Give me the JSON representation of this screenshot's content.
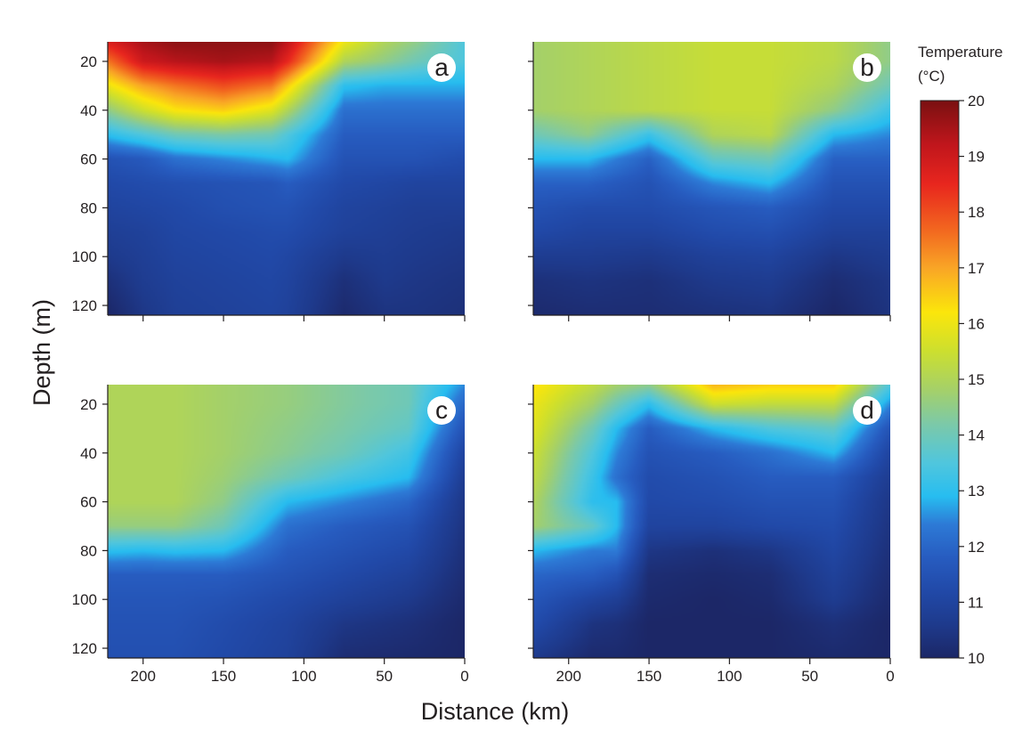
{
  "chart_data": {
    "type": "heatmap",
    "xlabel": "Distance (km)",
    "ylabel": "Depth (m)",
    "x_ticks": [
      200,
      150,
      100,
      50,
      0
    ],
    "y_ticks": [
      20,
      40,
      60,
      80,
      100,
      120
    ],
    "xlim": [
      222,
      0
    ],
    "ylim": [
      12,
      124
    ],
    "colorbar": {
      "title": "Temperature (°C)",
      "title_lines": [
        "Temperature",
        "(°C)"
      ],
      "range": [
        10,
        20
      ],
      "ticks": [
        10,
        11,
        12,
        13,
        14,
        15,
        16,
        17,
        18,
        19,
        20
      ],
      "colors": [
        {
          "t": 10,
          "color": "#1c2767"
        },
        {
          "t": 10.6,
          "color": "#1e3a8c"
        },
        {
          "t": 11.2,
          "color": "#2149a8"
        },
        {
          "t": 11.8,
          "color": "#275cc0"
        },
        {
          "t": 12.4,
          "color": "#2d7ad6"
        },
        {
          "t": 12.9,
          "color": "#27bdf0"
        },
        {
          "t": 13.5,
          "color": "#50c6dd"
        },
        {
          "t": 14.2,
          "color": "#7cc9a8"
        },
        {
          "t": 14.8,
          "color": "#a4d06a"
        },
        {
          "t": 15.5,
          "color": "#ccdf2f"
        },
        {
          "t": 16.2,
          "color": "#fbe60b"
        },
        {
          "t": 17,
          "color": "#f9a526"
        },
        {
          "t": 17.7,
          "color": "#f2651f"
        },
        {
          "t": 18.5,
          "color": "#e8261e"
        },
        {
          "t": 19.2,
          "color": "#c1161c"
        },
        {
          "t": 20,
          "color": "#7a1011"
        }
      ]
    },
    "panels": [
      {
        "label": "a",
        "stations_km": [
          222,
          200,
          180,
          150,
          120,
          110,
          75,
          50,
          30,
          0
        ],
        "depths_m": [
          12,
          20,
          30,
          40,
          50,
          60,
          70,
          80,
          90,
          100,
          110,
          124
        ],
        "temperature": [
          [
            18.8,
            19.5,
            19.8,
            19.8,
            19.8,
            19.2,
            16.0,
            15.0,
            14.5,
            13.5
          ],
          [
            17.5,
            19.0,
            19.3,
            19.5,
            19.3,
            18.5,
            15.0,
            14.5,
            14.0,
            13.5
          ],
          [
            16.0,
            17.0,
            17.5,
            18.0,
            17.5,
            16.5,
            13.0,
            12.8,
            12.8,
            12.8
          ],
          [
            14.5,
            15.5,
            16.2,
            16.5,
            15.8,
            15.0,
            12.2,
            12.2,
            12.2,
            12.2
          ],
          [
            13.0,
            13.5,
            14.0,
            14.2,
            14.0,
            13.5,
            11.8,
            11.8,
            11.8,
            11.8
          ],
          [
            11.5,
            11.7,
            12.2,
            12.5,
            12.8,
            12.9,
            11.5,
            11.5,
            11.5,
            11.3
          ],
          [
            11.2,
            11.3,
            11.4,
            11.5,
            11.6,
            11.8,
            11.2,
            11.1,
            11.0,
            11.0
          ],
          [
            11.0,
            11.1,
            11.2,
            11.4,
            11.5,
            11.5,
            11.0,
            10.9,
            10.8,
            10.8
          ],
          [
            10.8,
            10.9,
            11.1,
            11.2,
            11.3,
            11.3,
            10.9,
            10.8,
            10.7,
            10.6
          ],
          [
            10.6,
            10.8,
            11.0,
            11.1,
            11.2,
            11.1,
            10.6,
            10.7,
            10.6,
            10.5
          ],
          [
            10.3,
            10.7,
            10.9,
            11.0,
            11.1,
            11.0,
            10.3,
            10.6,
            10.5,
            10.4
          ],
          [
            10.0,
            10.5,
            10.8,
            10.9,
            11.0,
            10.9,
            10.1,
            10.4,
            10.4,
            10.3
          ]
        ]
      },
      {
        "label": "b",
        "stations_km": [
          222,
          188,
          150,
          110,
          75,
          35,
          0
        ],
        "depths_m": [
          12,
          20,
          30,
          40,
          50,
          60,
          70,
          80,
          90,
          100,
          110,
          124
        ],
        "temperature": [
          [
            14.8,
            15.0,
            15.2,
            15.4,
            15.4,
            15.2,
            14.5
          ],
          [
            14.8,
            15.0,
            15.2,
            15.4,
            15.4,
            15.2,
            14.5
          ],
          [
            14.8,
            15.0,
            15.2,
            15.4,
            15.4,
            15.0,
            14.0
          ],
          [
            14.8,
            15.0,
            15.2,
            15.4,
            15.4,
            14.5,
            13.2
          ],
          [
            14.0,
            14.5,
            13.2,
            15.0,
            15.2,
            12.9,
            12.5
          ],
          [
            12.9,
            12.9,
            11.9,
            13.8,
            14.0,
            11.9,
            11.9
          ],
          [
            11.9,
            11.9,
            11.5,
            12.5,
            12.9,
            11.5,
            11.5
          ],
          [
            11.5,
            11.3,
            11.3,
            11.6,
            11.8,
            11.2,
            11.2
          ],
          [
            11.2,
            11.0,
            11.0,
            11.3,
            11.4,
            10.9,
            10.9
          ],
          [
            10.7,
            10.7,
            10.6,
            10.9,
            11.0,
            10.5,
            10.7
          ],
          [
            10.3,
            10.4,
            10.3,
            10.6,
            10.7,
            10.2,
            10.5
          ],
          [
            10.1,
            10.2,
            10.2,
            10.3,
            10.4,
            10.0,
            10.4
          ]
        ]
      },
      {
        "label": "c",
        "stations_km": [
          222,
          200,
          180,
          150,
          110,
          75,
          35,
          0
        ],
        "depths_m": [
          12,
          20,
          30,
          40,
          50,
          60,
          70,
          80,
          90,
          100,
          110,
          124
        ],
        "temperature": [
          [
            15.0,
            15.0,
            15.0,
            14.8,
            14.6,
            14.3,
            14.0,
            12.5
          ],
          [
            15.0,
            15.0,
            15.0,
            14.8,
            14.6,
            14.3,
            14.0,
            12.0
          ],
          [
            15.0,
            15.0,
            15.0,
            14.8,
            14.5,
            14.2,
            13.8,
            11.5
          ],
          [
            15.0,
            15.0,
            15.0,
            14.8,
            14.4,
            14.0,
            13.3,
            11.0
          ],
          [
            15.0,
            15.0,
            15.0,
            14.7,
            14.0,
            13.4,
            12.9,
            10.7
          ],
          [
            15.0,
            15.0,
            15.0,
            14.5,
            12.9,
            12.5,
            12.0,
            10.5
          ],
          [
            14.6,
            14.6,
            14.6,
            14.0,
            12.2,
            11.8,
            11.5,
            10.4
          ],
          [
            13.0,
            12.9,
            13.0,
            12.9,
            11.8,
            11.5,
            11.2,
            10.3
          ],
          [
            11.8,
            11.8,
            11.8,
            11.8,
            11.5,
            11.2,
            10.9,
            10.2
          ],
          [
            11.6,
            11.6,
            11.6,
            11.5,
            11.2,
            10.9,
            10.6,
            10.1
          ],
          [
            11.5,
            11.5,
            11.5,
            11.3,
            11.0,
            10.5,
            10.3,
            10.0
          ],
          [
            11.4,
            11.4,
            11.4,
            11.2,
            10.9,
            10.2,
            10.1,
            10.0
          ]
        ]
      },
      {
        "label": "d",
        "stations_km": [
          222,
          185,
          170,
          150,
          110,
          75,
          35,
          0
        ],
        "depths_m": [
          12,
          20,
          30,
          40,
          50,
          60,
          70,
          80,
          90,
          100,
          110,
          124
        ],
        "temperature": [
          [
            16.3,
            15.3,
            14.8,
            14.5,
            16.8,
            16.5,
            16.5,
            13.5
          ],
          [
            16.0,
            14.8,
            14.0,
            13.0,
            15.5,
            15.3,
            15.3,
            12.5
          ],
          [
            15.8,
            14.0,
            12.9,
            11.8,
            12.9,
            13.5,
            13.8,
            11.5
          ],
          [
            15.5,
            13.5,
            12.5,
            11.5,
            11.8,
            12.2,
            12.9,
            11.0
          ],
          [
            15.3,
            13.2,
            12.2,
            11.3,
            11.5,
            11.8,
            11.8,
            10.7
          ],
          [
            15.0,
            13.0,
            12.9,
            11.2,
            11.3,
            11.5,
            11.5,
            10.5
          ],
          [
            14.8,
            13.8,
            12.9,
            11.0,
            11.0,
            11.2,
            11.3,
            10.4
          ],
          [
            12.9,
            12.4,
            12.4,
            10.5,
            10.3,
            10.5,
            11.1,
            10.3
          ],
          [
            12.0,
            11.8,
            11.5,
            10.2,
            10.1,
            10.2,
            10.9,
            10.2
          ],
          [
            11.6,
            11.0,
            10.8,
            10.1,
            10.0,
            10.1,
            10.7,
            10.1
          ],
          [
            11.3,
            10.4,
            10.3,
            10.0,
            10.0,
            10.0,
            10.3,
            10.0
          ],
          [
            10.6,
            10.1,
            10.1,
            10.0,
            10.0,
            10.0,
            10.1,
            10.0
          ]
        ]
      }
    ]
  }
}
